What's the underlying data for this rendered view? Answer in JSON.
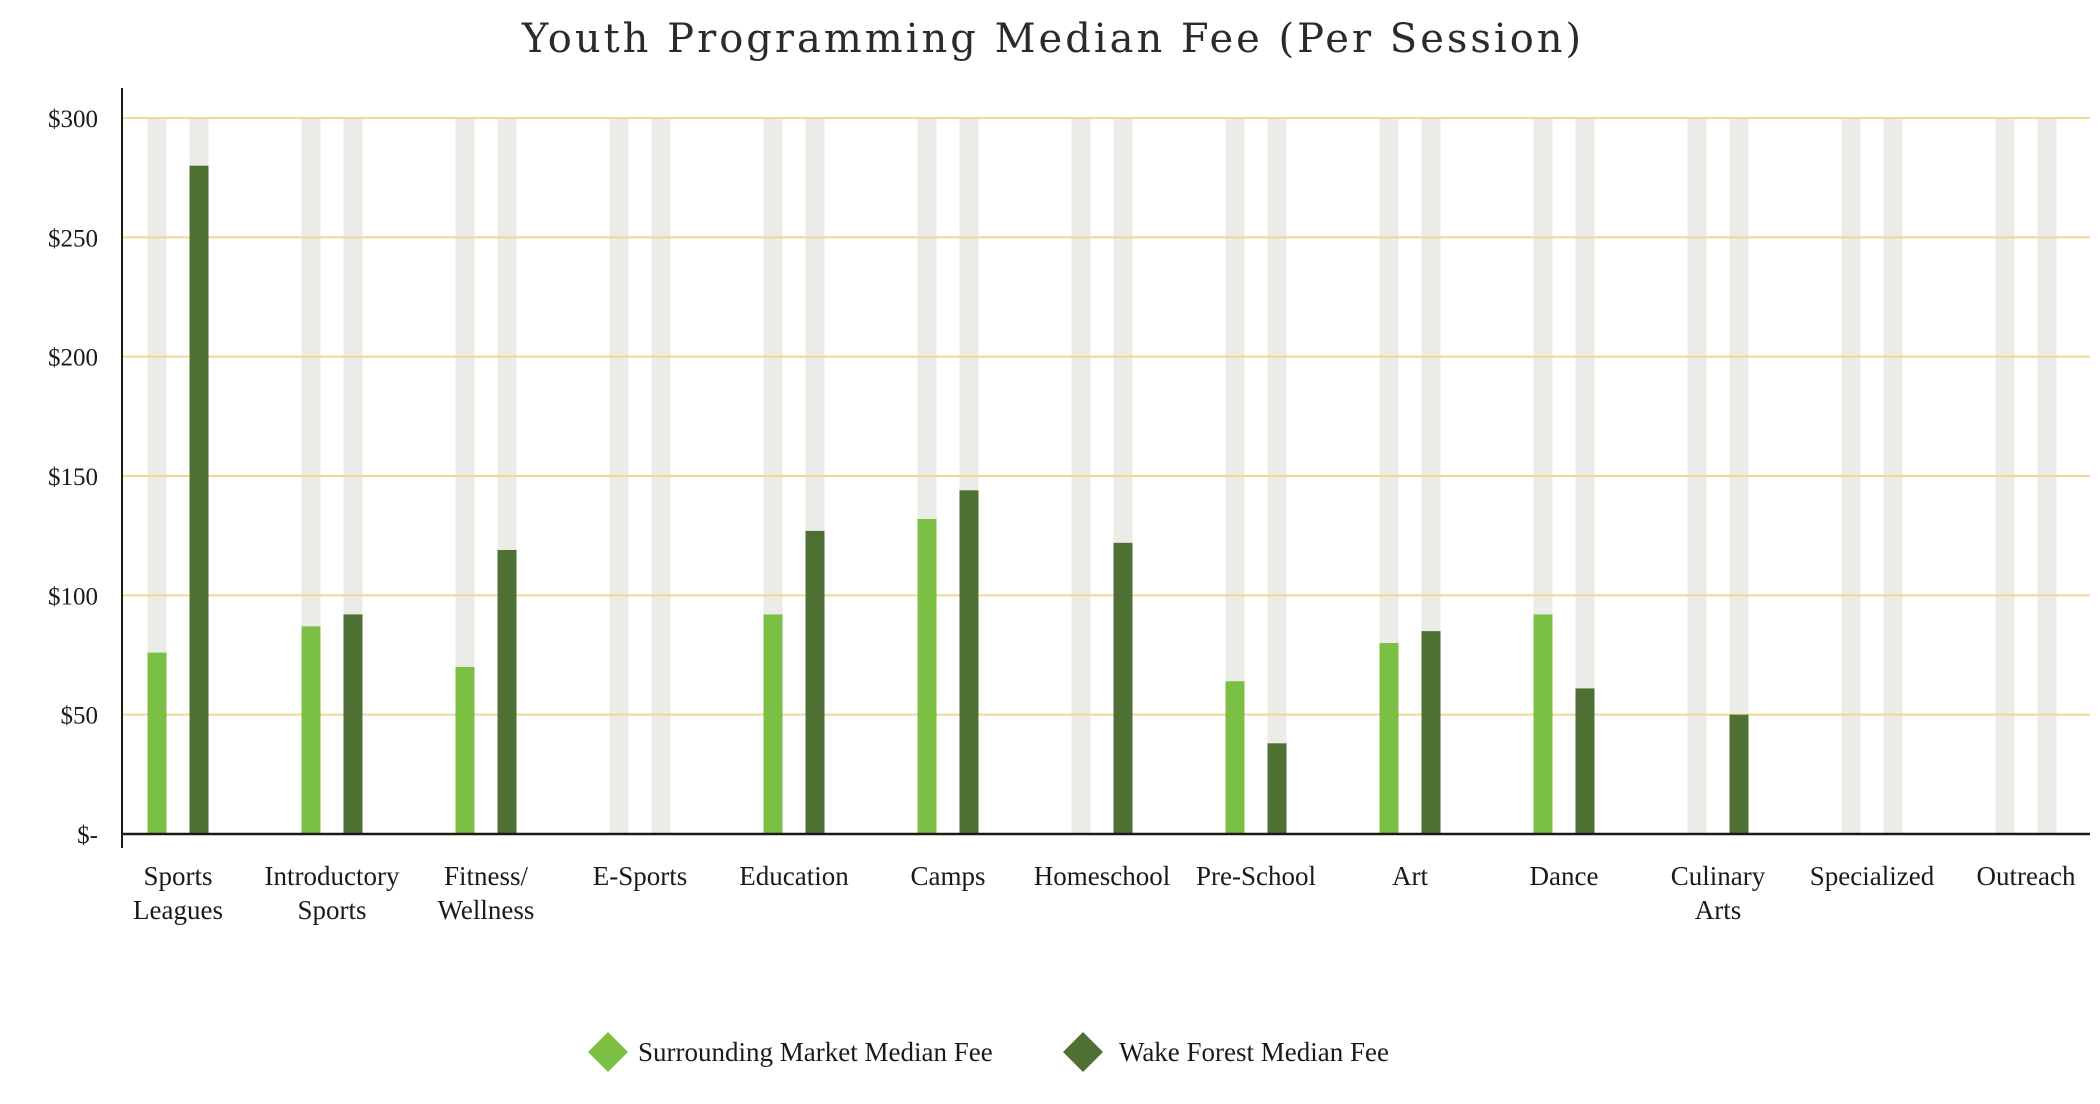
{
  "chart_data": {
    "type": "bar",
    "title": "Youth Programming Median Fee (Per Session)",
    "xlabel": "",
    "ylabel": "",
    "ylim": [
      0,
      300
    ],
    "yticks": [
      0,
      50,
      100,
      150,
      200,
      250,
      300
    ],
    "ytick_labels": [
      "$-",
      "$50",
      "$100",
      "$150",
      "$200",
      "$250",
      "$300"
    ],
    "grid": true,
    "legend_position": "bottom-center",
    "categories": [
      [
        "Sports",
        "Leagues"
      ],
      [
        "Introductory",
        "Sports"
      ],
      [
        "Fitness/",
        "Wellness"
      ],
      [
        "E-Sports"
      ],
      [
        "Education"
      ],
      [
        "Camps"
      ],
      [
        "Homeschool"
      ],
      [
        "Pre-School"
      ],
      [
        "Art"
      ],
      [
        "Dance"
      ],
      [
        "Culinary",
        "Arts"
      ],
      [
        "Specialized"
      ],
      [
        "Outreach"
      ]
    ],
    "series": [
      {
        "name": "Surrounding Market Median Fee",
        "color": "#7cbf45",
        "values": [
          76,
          87,
          70,
          null,
          92,
          132,
          null,
          64,
          80,
          92,
          null,
          null,
          null
        ]
      },
      {
        "name": "Wake Forest Median Fee",
        "color": "#4e7033",
        "values": [
          280,
          92,
          119,
          null,
          127,
          144,
          122,
          38,
          85,
          61,
          50,
          null,
          null
        ]
      }
    ],
    "colors": {
      "track": "#ebece8",
      "gridline": "#f2d890",
      "axis": "#1a1a1a"
    }
  }
}
